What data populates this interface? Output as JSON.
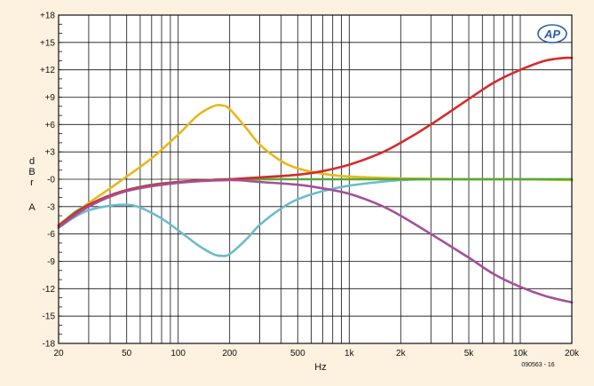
{
  "chart_data": {
    "type": "line",
    "title": "",
    "xlabel": "Hz",
    "ylabel_letters": [
      "d",
      "B",
      "r",
      "",
      "A"
    ],
    "x_scale": "log",
    "xlim": [
      20,
      20000
    ],
    "ylim": [
      -18,
      18
    ],
    "grid": true,
    "legend": "none",
    "x_ticks": [
      {
        "v": 20,
        "t": "20"
      },
      {
        "v": 50,
        "t": "50"
      },
      {
        "v": 100,
        "t": "100"
      },
      {
        "v": 200,
        "t": "200"
      },
      {
        "v": 500,
        "t": "500"
      },
      {
        "v": 1000,
        "t": "1k"
      },
      {
        "v": 2000,
        "t": "2k"
      },
      {
        "v": 5000,
        "t": "5k"
      },
      {
        "v": 10000,
        "t": "10k"
      },
      {
        "v": 20000,
        "t": "20k"
      }
    ],
    "y_ticks": [
      {
        "v": 18,
        "t": "+18"
      },
      {
        "v": 15,
        "t": "+15"
      },
      {
        "v": 12,
        "t": "+12"
      },
      {
        "v": 9,
        "t": "+9"
      },
      {
        "v": 6,
        "t": "+6"
      },
      {
        "v": 3,
        "t": "+3"
      },
      {
        "v": 0,
        "t": "-0"
      },
      {
        "v": -3,
        "t": "-3"
      },
      {
        "v": -6,
        "t": "-6"
      },
      {
        "v": -9,
        "t": "-9"
      },
      {
        "v": -12,
        "t": "-12"
      },
      {
        "v": -15,
        "t": "-15"
      },
      {
        "v": -18,
        "t": "-18"
      }
    ],
    "series": [
      {
        "color": "#6bbccb",
        "points": [
          [
            20,
            -5.3
          ],
          [
            25,
            -4.1
          ],
          [
            30,
            -3.4
          ],
          [
            40,
            -2.9
          ],
          [
            50,
            -2.8
          ],
          [
            60,
            -3.1
          ],
          [
            80,
            -4.3
          ],
          [
            100,
            -5.6
          ],
          [
            130,
            -7.2
          ],
          [
            160,
            -8.2
          ],
          [
            180,
            -8.4
          ],
          [
            200,
            -8.2
          ],
          [
            250,
            -6.6
          ],
          [
            300,
            -5.0
          ],
          [
            400,
            -3.2
          ],
          [
            500,
            -2.2
          ],
          [
            700,
            -1.3
          ],
          [
            1000,
            -0.7
          ],
          [
            1500,
            -0.3
          ],
          [
            2000,
            -0.1
          ],
          [
            3000,
            0
          ],
          [
            5000,
            0
          ],
          [
            10000,
            0
          ],
          [
            20000,
            0
          ]
        ]
      },
      {
        "color": "#e8b81a",
        "points": [
          [
            20,
            -5.0
          ],
          [
            30,
            -2.6
          ],
          [
            40,
            -1.0
          ],
          [
            50,
            0.3
          ],
          [
            70,
            2.3
          ],
          [
            100,
            4.9
          ],
          [
            130,
            7.0
          ],
          [
            160,
            8.0
          ],
          [
            180,
            8.1
          ],
          [
            200,
            7.7
          ],
          [
            250,
            5.6
          ],
          [
            300,
            3.8
          ],
          [
            400,
            2.0
          ],
          [
            500,
            1.2
          ],
          [
            700,
            0.6
          ],
          [
            1000,
            0.3
          ],
          [
            2000,
            0.1
          ],
          [
            5000,
            0
          ],
          [
            10000,
            0
          ],
          [
            20000,
            -0.1
          ]
        ]
      },
      {
        "color": "#56a838",
        "points": [
          [
            20,
            -5.1
          ],
          [
            25,
            -3.6
          ],
          [
            30,
            -2.8
          ],
          [
            40,
            -1.8
          ],
          [
            50,
            -1.2
          ],
          [
            70,
            -0.6
          ],
          [
            100,
            -0.3
          ],
          [
            150,
            -0.1
          ],
          [
            200,
            0
          ],
          [
            500,
            0
          ],
          [
            1000,
            0
          ],
          [
            2000,
            0
          ],
          [
            5000,
            0
          ],
          [
            10000,
            0
          ],
          [
            20000,
            0
          ]
        ]
      },
      {
        "color": "#d72a2a",
        "points": [
          [
            20,
            -5.1
          ],
          [
            30,
            -2.8
          ],
          [
            50,
            -1.2
          ],
          [
            100,
            -0.3
          ],
          [
            200,
            0
          ],
          [
            300,
            0.2
          ],
          [
            500,
            0.5
          ],
          [
            700,
            0.9
          ],
          [
            1000,
            1.6
          ],
          [
            1500,
            2.8
          ],
          [
            2000,
            4.0
          ],
          [
            3000,
            6.0
          ],
          [
            5000,
            8.8
          ],
          [
            7000,
            10.6
          ],
          [
            10000,
            12.0
          ],
          [
            14000,
            13.0
          ],
          [
            18000,
            13.3
          ],
          [
            20000,
            13.3
          ]
        ]
      },
      {
        "color": "#a4509a",
        "points": [
          [
            20,
            -5.3
          ],
          [
            30,
            -3.0
          ],
          [
            50,
            -1.3
          ],
          [
            100,
            -0.4
          ],
          [
            200,
            -0.1
          ],
          [
            300,
            -0.3
          ],
          [
            500,
            -0.6
          ],
          [
            700,
            -1.0
          ],
          [
            1000,
            -1.6
          ],
          [
            1500,
            -2.8
          ],
          [
            2000,
            -4.0
          ],
          [
            3000,
            -6.0
          ],
          [
            5000,
            -8.6
          ],
          [
            7000,
            -10.4
          ],
          [
            10000,
            -11.8
          ],
          [
            14000,
            -12.8
          ],
          [
            20000,
            -13.5
          ]
        ]
      }
    ],
    "annotations": {
      "figure_id": "090563 - 16",
      "logo": "AP"
    }
  }
}
